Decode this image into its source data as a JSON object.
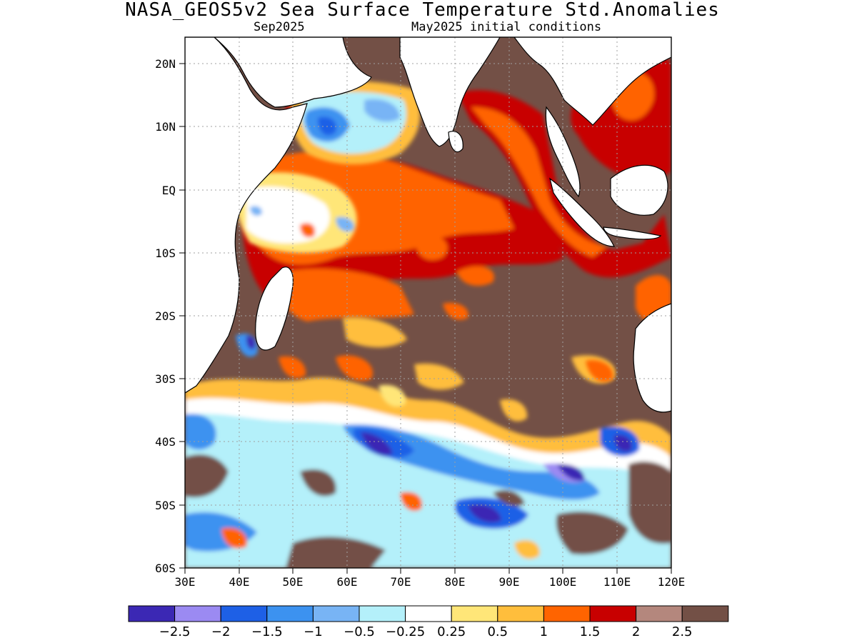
{
  "header": {
    "title": "NASA_GEOS5v2 Sea Surface Temperature Std.Anomalies",
    "subtitle_left": "Sep2025",
    "subtitle_right": "May2025 initial conditions"
  },
  "map": {
    "lon_range": [
      30,
      120
    ],
    "lat_range": [
      -60,
      24
    ],
    "lat_ticks": [
      "20N",
      "10N",
      "EQ",
      "10S",
      "20S",
      "30S",
      "40S",
      "50S",
      "60S"
    ],
    "lon_ticks": [
      "30E",
      "40E",
      "50E",
      "60E",
      "70E",
      "80E",
      "90E",
      "100E",
      "110E",
      "120E"
    ],
    "grid": "dotted"
  },
  "colorbar": {
    "colors": [
      "#3b28b4",
      "#9b8af2",
      "#1e60e6",
      "#3c92f0",
      "#78b4f5",
      "#b4f0fa",
      "#ffffff",
      "#ffe678",
      "#ffbe3c",
      "#ff6400",
      "#c80000",
      "#b4877d",
      "#735046"
    ],
    "labels": [
      "−2.5",
      "−2",
      "−1.5",
      "−1",
      "−0.5",
      "−0.25",
      "0.25",
      "0.5",
      "1",
      "1.5",
      "2",
      "2.5"
    ]
  },
  "legend_colors": {
    "land": "#ffffff",
    "strong_positive": "#735046",
    "strong_negative": "#3b28b4"
  }
}
